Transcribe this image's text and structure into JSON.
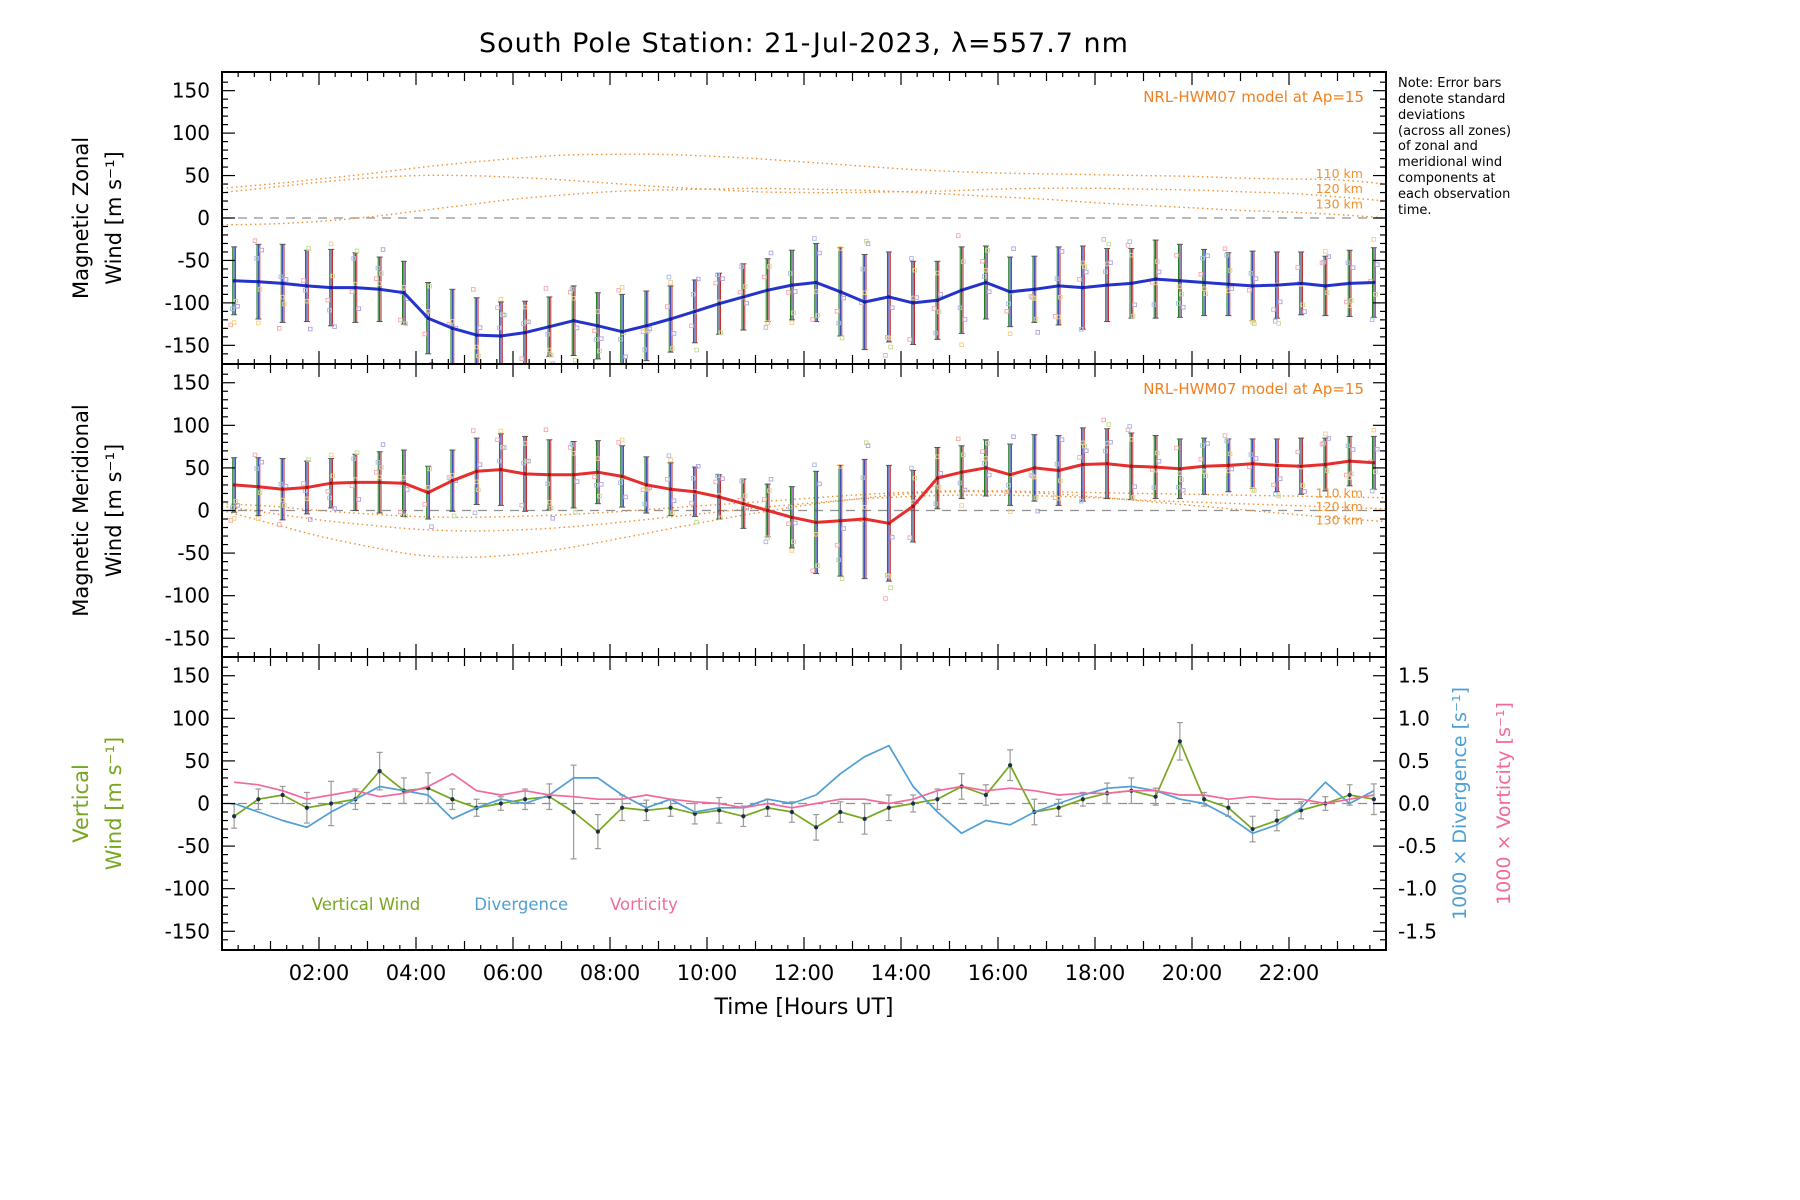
{
  "title": "South Pole Station: 21-Jul-2023, λ=557.7 nm",
  "note": {
    "text": "Note: Error bars\ndenote standard\ndeviations\n(across all zones)\nof zonal and\nmeridional wind\ncomponents at\neach observation\ntime."
  },
  "colors": {
    "model": "#f09030",
    "annotation": "#f08020",
    "zero_line": "#909090",
    "gray_bar": "#9a9a9a",
    "dot": "#1c2e4a",
    "errorbar": [
      "#1a7a1a",
      "#2438b0",
      "#c42828"
    ],
    "scatter": [
      "#f5a8a8",
      "#a8b8ee",
      "#f8cc80",
      "#c0dc90",
      "#b0a0dc"
    ]
  },
  "chart_data": {
    "type": "line",
    "xlabel": "Time [Hours UT]",
    "x_range": [
      0,
      24
    ],
    "x_ticks": [
      {
        "h": 2,
        "label": "02:00"
      },
      {
        "h": 4,
        "label": "04:00"
      },
      {
        "h": 6,
        "label": "06:00"
      },
      {
        "h": 8,
        "label": "08:00"
      },
      {
        "h": 10,
        "label": "10:00"
      },
      {
        "h": 12,
        "label": "12:00"
      },
      {
        "h": 14,
        "label": "14:00"
      },
      {
        "h": 16,
        "label": "16:00"
      },
      {
        "h": 18,
        "label": "18:00"
      },
      {
        "h": 20,
        "label": "20:00"
      },
      {
        "h": 22,
        "label": "22:00"
      }
    ],
    "right_ticks": [
      -1.5,
      -1.0,
      -0.5,
      0.0,
      0.5,
      1.0,
      1.5
    ],
    "x_hours": [
      0.25,
      0.75,
      1.25,
      1.75,
      2.25,
      2.75,
      3.25,
      3.75,
      4.25,
      4.75,
      5.25,
      5.75,
      6.25,
      6.75,
      7.25,
      7.75,
      8.25,
      8.75,
      9.25,
      9.75,
      10.25,
      10.75,
      11.25,
      11.75,
      12.25,
      12.75,
      13.25,
      13.75,
      14.25,
      14.75,
      15.25,
      15.75,
      16.25,
      16.75,
      17.25,
      17.75,
      18.25,
      18.75,
      19.25,
      19.75,
      20.25,
      20.75,
      21.25,
      21.75,
      22.25,
      22.75,
      23.25,
      23.75
    ],
    "panels": [
      {
        "name": "magnetic-zonal-wind",
        "ylabel_lines": [
          "Magnetic Zonal",
          "Wind [m s⁻¹]"
        ],
        "ylim": [
          -172,
          172
        ],
        "yticks": [
          -150,
          -100,
          -50,
          0,
          50,
          100,
          150
        ],
        "annotation": "NRL-HWM07 model at Ap=15",
        "model_labels": [
          {
            "text": "110 km",
            "x": 22.55,
            "y": 52
          },
          {
            "text": "120 km",
            "x": 22.55,
            "y": 34
          },
          {
            "text": "130 km",
            "x": 22.55,
            "y": 16
          }
        ],
        "observed": {
          "name": "zonal-wind-mean",
          "color": "#2433cc",
          "dot_color": "#14208c",
          "y": [
            -74,
            -75,
            -77,
            -80,
            -82,
            -82,
            -84,
            -88,
            -118,
            -130,
            -138,
            -139,
            -135,
            -128,
            -121,
            -127,
            -134,
            -127,
            -119,
            -110,
            -101,
            -93,
            -85,
            -79,
            -76,
            -87,
            -99,
            -93,
            -100,
            -97,
            -85,
            -76,
            -87,
            -84,
            -80,
            -82,
            -79,
            -77,
            -72,
            -74,
            -76,
            -78,
            -80,
            -79,
            -77,
            -80,
            -77,
            -76
          ],
          "err": [
            40,
            44,
            46,
            42,
            45,
            41,
            38,
            37,
            42,
            46,
            44,
            40,
            37,
            35,
            41,
            39,
            44,
            41,
            39,
            37,
            36,
            39,
            37,
            41,
            46,
            52,
            56,
            53,
            49,
            46,
            51,
            43,
            41,
            39,
            46,
            49,
            43,
            41,
            46,
            43,
            39,
            37,
            41,
            39,
            37,
            35,
            39,
            41
          ]
        },
        "models": [
          {
            "name": "hwm07-110km",
            "y": [
              35,
              40,
              46,
              52,
              59,
              65,
              70,
              74,
              75,
              75,
              73,
              70,
              66,
              62,
              58,
              55,
              53,
              52,
              51,
              50,
              49,
              47,
              46,
              45,
              40
            ]
          },
          {
            "name": "hwm07-120km",
            "y": [
              30,
              36,
              42,
              47,
              50,
              50,
              48,
              45,
              41,
              37,
              34,
              31,
              30,
              30,
              31,
              32,
              34,
              35,
              35,
              34,
              33,
              31,
              29,
              25,
              20
            ]
          },
          {
            "name": "hwm07-130km",
            "y": [
              -8,
              -7,
              -4,
              1,
              8,
              15,
              22,
              27,
              31,
              33,
              34,
              35,
              34,
              33,
              31,
              28,
              25,
              22,
              18,
              15,
              12,
              9,
              7,
              4,
              0
            ]
          }
        ]
      },
      {
        "name": "magnetic-meridional-wind",
        "ylabel_lines": [
          "Magnetic Meridional",
          "Wind [m s⁻¹]"
        ],
        "ylim": [
          -172,
          172
        ],
        "yticks": [
          -150,
          -100,
          -50,
          0,
          50,
          100,
          150
        ],
        "annotation": "NRL-HWM07 model at Ap=15",
        "model_labels": [
          {
            "text": "110 km",
            "x": 22.55,
            "y": 20
          },
          {
            "text": "120 km",
            "x": 22.55,
            "y": 4
          },
          {
            "text": "130 km",
            "x": 22.55,
            "y": -12
          }
        ],
        "observed": {
          "name": "meridional-wind-mean",
          "color": "#e62e2e",
          "dot_color": "#9c1414",
          "y": [
            30,
            28,
            25,
            27,
            32,
            33,
            33,
            32,
            21,
            35,
            46,
            48,
            43,
            42,
            42,
            45,
            40,
            30,
            25,
            22,
            16,
            8,
            0,
            -8,
            -14,
            -12,
            -10,
            -15,
            5,
            38,
            45,
            50,
            42,
            50,
            47,
            54,
            55,
            52,
            51,
            49,
            52,
            53,
            55,
            53,
            52,
            54,
            58,
            56
          ],
          "err": [
            32,
            34,
            36,
            31,
            29,
            33,
            36,
            39,
            31,
            36,
            39,
            42,
            44,
            41,
            39,
            37,
            36,
            33,
            31,
            29,
            26,
            29,
            31,
            36,
            60,
            65,
            70,
            68,
            42,
            36,
            31,
            33,
            36,
            39,
            41,
            43,
            41,
            39,
            37,
            35,
            33,
            31,
            29,
            31,
            33,
            31,
            29,
            31
          ]
        },
        "models": [
          {
            "name": "hwm07-110km",
            "y": [
              8,
              5,
              0,
              -4,
              -7,
              -8,
              -7,
              -5,
              -2,
              2,
              6,
              10,
              14,
              18,
              21,
              23,
              23,
              22,
              21,
              20,
              19,
              18,
              17,
              16,
              15
            ]
          },
          {
            "name": "hwm07-120km",
            "y": [
              5,
              -3,
              -11,
              -17,
              -22,
              -24,
              -23,
              -20,
              -15,
              -9,
              -3,
              3,
              8,
              13,
              16,
              18,
              18,
              17,
              15,
              12,
              10,
              8,
              6,
              4,
              2
            ]
          },
          {
            "name": "hwm07-130km",
            "y": [
              0,
              -15,
              -30,
              -42,
              -52,
              -55,
              -52,
              -45,
              -35,
              -24,
              -13,
              -3,
              6,
              13,
              19,
              22,
              22,
              20,
              16,
              11,
              6,
              1,
              -4,
              -9,
              -13
            ]
          }
        ]
      },
      {
        "name": "vertical-wind-divergence-vorticity",
        "ylabel_lines": [
          "Vertical",
          "Wind [m s⁻¹]"
        ],
        "ylabel_color": "#76a71f",
        "ylim": [
          -172,
          172
        ],
        "yticks": [
          -150,
          -100,
          -50,
          0,
          50,
          100,
          150
        ],
        "right_axes": [
          {
            "label": "1000 × Divergence [s⁻¹]",
            "color": "#4f9fd4"
          },
          {
            "label": "1000 × Vorticity [s⁻¹]",
            "color": "#f2699c"
          }
        ],
        "legend": [
          {
            "label": "Vertical Wind",
            "color": "#76a71f",
            "x": 1.85
          },
          {
            "label": "Divergence",
            "color": "#4f9fd4",
            "x": 5.2
          },
          {
            "label": "Vorticity",
            "color": "#f2699c",
            "x": 8.0
          }
        ],
        "series": [
          {
            "name": "Vertical Wind",
            "color": "#76a71f",
            "axis": "left",
            "dots": true,
            "y": [
              -15,
              5,
              10,
              -5,
              0,
              5,
              38,
              15,
              18,
              5,
              -5,
              0,
              5,
              8,
              -10,
              -33,
              -5,
              -8,
              -5,
              -12,
              -8,
              -15,
              -5,
              -10,
              -28,
              -10,
              -18,
              -5,
              0,
              5,
              20,
              10,
              45,
              -10,
              -5,
              5,
              12,
              15,
              8,
              73,
              5,
              -5,
              -30,
              -20,
              -8,
              0,
              10,
              5
            ],
            "err": [
              14,
              12,
              10,
              18,
              26,
              12,
              22,
              15,
              18,
              12,
              10,
              8,
              12,
              15,
              55,
              20,
              15,
              12,
              10,
              12,
              15,
              12,
              10,
              12,
              15,
              12,
              18,
              15,
              10,
              12,
              15,
              12,
              18,
              15,
              10,
              8,
              12,
              15,
              10,
              22,
              8,
              10,
              15,
              12,
              10,
              8,
              12,
              18
            ]
          },
          {
            "name": "Divergence",
            "color": "#4f9fd4",
            "axis": "right",
            "y": [
              0.0,
              -0.1,
              -0.2,
              -0.28,
              -0.1,
              0.05,
              0.2,
              0.15,
              0.1,
              -0.18,
              -0.05,
              0.05,
              0.0,
              0.1,
              0.3,
              0.3,
              0.1,
              -0.05,
              0.05,
              -0.1,
              -0.05,
              -0.05,
              0.05,
              0.0,
              0.1,
              0.35,
              0.55,
              0.68,
              0.2,
              -0.1,
              -0.35,
              -0.2,
              -0.25,
              -0.1,
              0.0,
              0.1,
              0.18,
              0.2,
              0.15,
              0.05,
              0.0,
              -0.15,
              -0.35,
              -0.25,
              -0.05,
              0.25,
              0.0,
              0.15
            ]
          },
          {
            "name": "Vorticity",
            "color": "#f2699c",
            "axis": "right",
            "y": [
              0.25,
              0.22,
              0.15,
              0.05,
              0.1,
              0.15,
              0.08,
              0.12,
              0.2,
              0.35,
              0.15,
              0.1,
              0.15,
              0.1,
              0.08,
              0.05,
              0.05,
              0.1,
              0.05,
              0.02,
              0.0,
              -0.05,
              0.0,
              -0.05,
              0.0,
              0.05,
              0.05,
              0.0,
              0.05,
              0.15,
              0.2,
              0.15,
              0.18,
              0.15,
              0.1,
              0.12,
              0.12,
              0.15,
              0.15,
              0.1,
              0.1,
              0.05,
              0.08,
              0.05,
              0.05,
              0.0,
              0.05,
              0.1
            ]
          }
        ]
      }
    ]
  }
}
